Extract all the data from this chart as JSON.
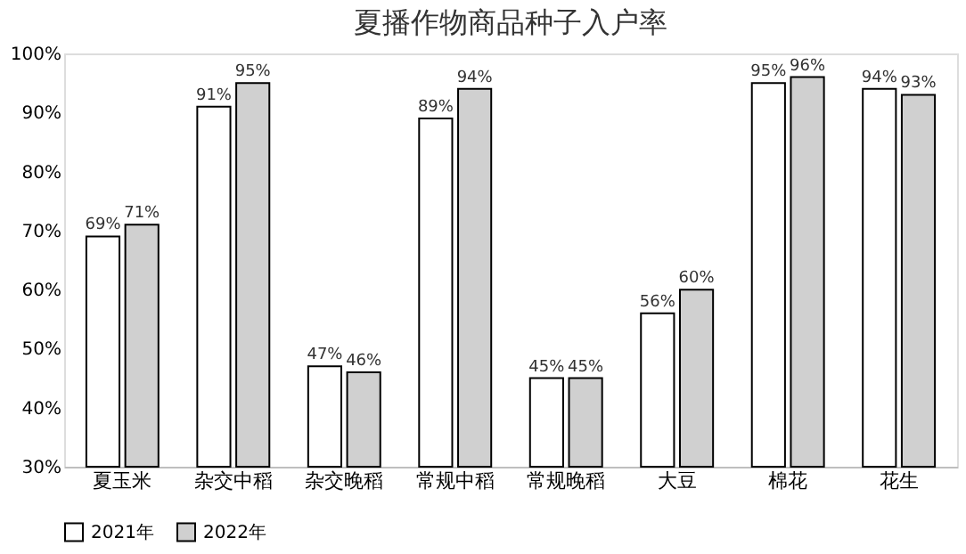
{
  "chart_data": {
    "type": "bar",
    "title": "夏播作物商品种子入户率",
    "categories": [
      "夏玉米",
      "杂交中稻",
      "杂交晚稻",
      "常规中稻",
      "常规晚稻",
      "大豆",
      "棉花",
      "花生"
    ],
    "series": [
      {
        "name": "2021年",
        "color": "#ffffff",
        "values": [
          69,
          91,
          47,
          89,
          45,
          56,
          95,
          94
        ],
        "value_labels": [
          "69%",
          "91%",
          "47%",
          "89%",
          "45%",
          "56%",
          "95%",
          "94%"
        ]
      },
      {
        "name": "2022年",
        "color": "#d0d0d0",
        "values": [
          71,
          95,
          46,
          94,
          45,
          60,
          96,
          93
        ],
        "value_labels": [
          "71%",
          "95%",
          "46%",
          "94%",
          "45%",
          "60%",
          "96%",
          "93%"
        ]
      }
    ],
    "ylim": [
      30,
      100
    ],
    "yticks": [
      {
        "value": 30,
        "label": "30%"
      },
      {
        "value": 40,
        "label": "40%"
      },
      {
        "value": 50,
        "label": "50%"
      },
      {
        "value": 60,
        "label": "60%"
      },
      {
        "value": 70,
        "label": "70%"
      },
      {
        "value": 80,
        "label": "80%"
      },
      {
        "value": 90,
        "label": "90%"
      },
      {
        "value": 100,
        "label": "100%"
      }
    ],
    "grid": false,
    "legend": "bottom"
  }
}
